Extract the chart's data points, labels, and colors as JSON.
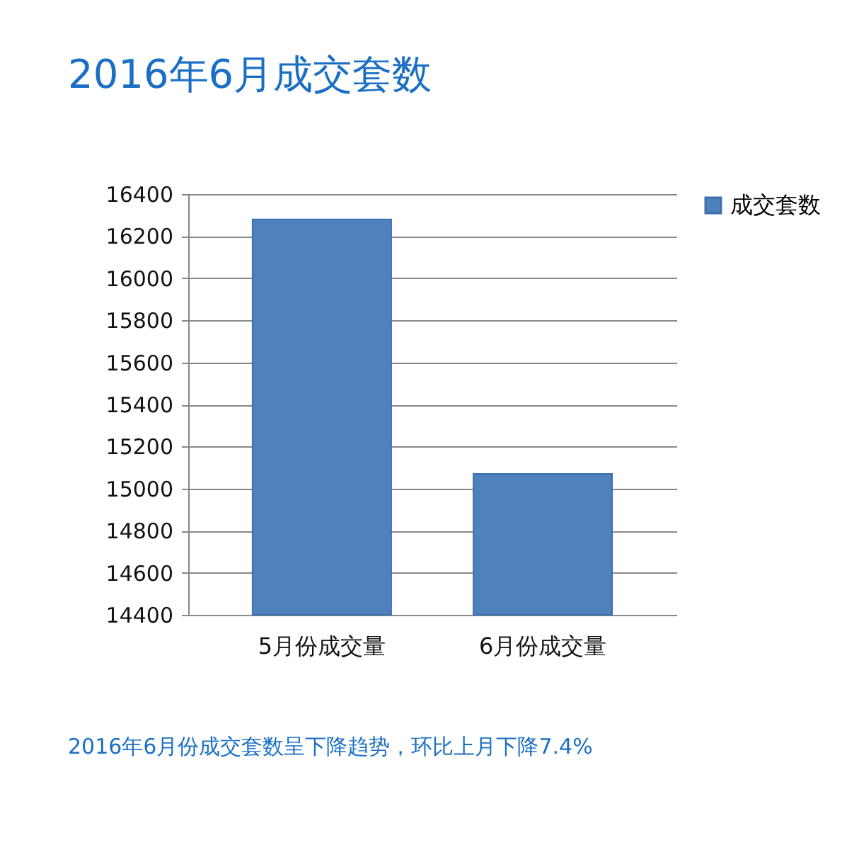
{
  "chart_data": {
    "type": "bar",
    "title": "2016年6月成交套数",
    "categories": [
      "5月份成交量",
      "6月份成交量"
    ],
    "series": [
      {
        "name": "成交套数",
        "color": "#4f81bd",
        "values": [
          16280,
          15070
        ]
      }
    ],
    "ylim": [
      14400,
      16400
    ],
    "yticks": [
      14400,
      14600,
      14800,
      15000,
      15200,
      15400,
      15600,
      15800,
      16000,
      16200,
      16400
    ],
    "grid": "y",
    "legend": "right",
    "annotations": [
      "2016年6月份成交套数呈下降趋势，环比上月下降7.4%"
    ]
  }
}
